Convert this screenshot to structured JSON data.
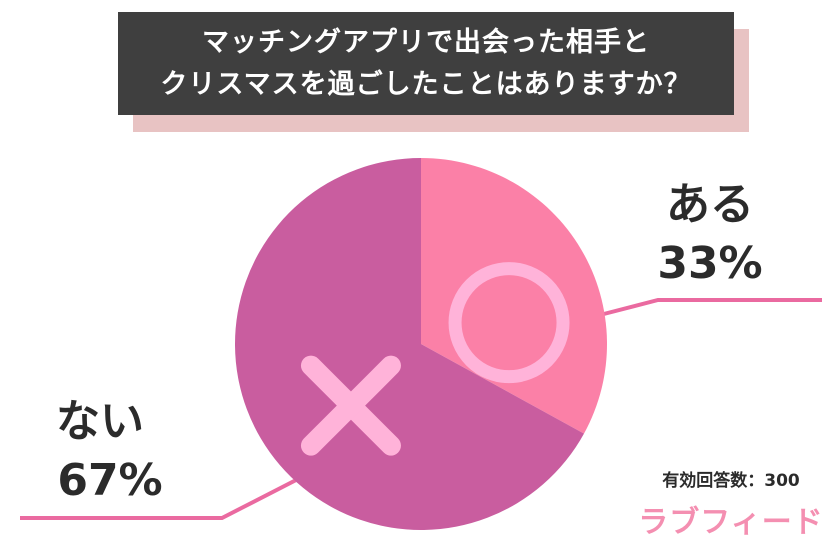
{
  "title_lines": [
    "マッチングアプリで出会った相手と",
    "クリスマスを過ごしたことはありますか？"
  ],
  "respondents_text": "有効回答数：300",
  "brand": "ラブフィード",
  "chart_data": {
    "type": "pie",
    "title": "マッチングアプリで出会った相手とクリスマスを過ごしたことはありますか？",
    "slices": [
      {
        "label": "ある",
        "value": 33,
        "percent_label": "33%",
        "color": "#fb80a7",
        "icon": "circle-icon"
      },
      {
        "label": "ない",
        "value": 67,
        "percent_label": "67%",
        "color": "#c95d9f",
        "icon": "cross-icon"
      }
    ],
    "total_respondents": 300
  },
  "colors": {
    "title_bg": "#3f3f3f",
    "title_shadow": "#e8c3c3",
    "leader_line": "#ea6aa0",
    "icon_fill": "#ffb3d9",
    "brand": "#f48fb1"
  }
}
